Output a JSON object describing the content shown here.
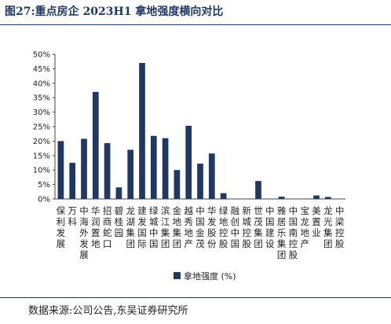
{
  "page": {
    "title": "图27:重点房企 2023H1 拿地强度横向对比",
    "source": "数据来源:公司公告,东吴证券研究所"
  },
  "chart_data": {
    "type": "bar",
    "title": "",
    "xlabel": "",
    "ylabel": "",
    "ylim": [
      0,
      0.5
    ],
    "yticks": [
      "0%",
      "5%",
      "10%",
      "15%",
      "20%",
      "25%",
      "30%",
      "35%",
      "40%",
      "45%",
      "50%"
    ],
    "grid": false,
    "legend_position": "bottom",
    "bar_color": "#1f3864",
    "categories": [
      "保利发展",
      "万科",
      "中海外发展",
      "华润置地",
      "招商蛇口",
      "碧桂园",
      "龙湖集团",
      "建发国际",
      "绿城中国",
      "滨江集团",
      "金地集团",
      "越秀地产",
      "中国金茂",
      "华发股份",
      "绿地控股",
      "融创中国",
      "新城控股",
      "世茂集团",
      "中国建设",
      "雅居乐集团",
      "中国南控股",
      "宝龙地产",
      "美置业",
      "龙光集团",
      "中梁控股"
    ],
    "series": [
      {
        "name": "拿地强度 (%)",
        "values": [
          0.2,
          0.125,
          0.208,
          0.37,
          0.193,
          0.04,
          0.17,
          0.47,
          0.218,
          0.21,
          0.1,
          0.253,
          0.122,
          0.157,
          0.02,
          0.0,
          0.0,
          0.062,
          0.0,
          0.008,
          0.0,
          0.0,
          0.012,
          0.007,
          0.0
        ]
      }
    ]
  }
}
